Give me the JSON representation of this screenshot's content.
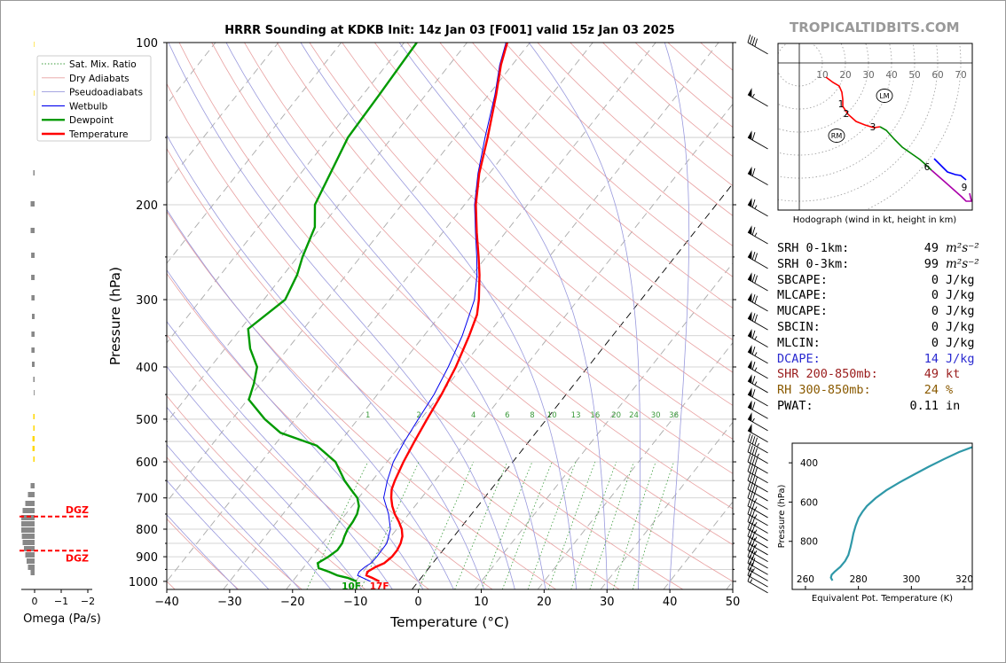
{
  "title": "HRRR Sounding at KDKB Init: 14z Jan 03 [F001] valid 15z Jan 03 2025",
  "brand": "TROPICALTIDBITS.COM",
  "chart_data": [
    {
      "type": "line",
      "name": "skew-t",
      "xlabel": "Temperature (°C)",
      "ylabel": "Pressure (hPa)",
      "xlim": [
        -40,
        50
      ],
      "ylim": [
        1035,
        100
      ],
      "x_ticks": [
        "−40",
        "−30",
        "−20",
        "−10",
        "0",
        "10",
        "20",
        "30",
        "40",
        "50"
      ],
      "y_ticks": [
        "100",
        "200",
        "300",
        "400",
        "500",
        "600",
        "700",
        "800",
        "900",
        "1000"
      ],
      "legend": [
        "Sat. Mix. Ratio",
        "Dry Adiabats",
        "Pseudoadiabats",
        "Wetbulb",
        "Dewpoint",
        "Temperature"
      ],
      "mixing_ratio_labels": [
        "1",
        "2",
        "4",
        "6",
        "8",
        "10",
        "13",
        "16",
        "20",
        "24",
        "30",
        "36"
      ],
      "surface_labels": {
        "dewpoint": "10F",
        "temperature": "17F"
      },
      "temperature": [
        [
          1000,
          -6.2
        ],
        [
          985,
          -7.8
        ],
        [
          975,
          -9.0
        ],
        [
          960,
          -9.3
        ],
        [
          940,
          -8.6
        ],
        [
          925,
          -7.7
        ],
        [
          900,
          -7.3
        ],
        [
          875,
          -7.3
        ],
        [
          850,
          -7.6
        ],
        [
          825,
          -8.2
        ],
        [
          800,
          -9.2
        ],
        [
          775,
          -10.6
        ],
        [
          750,
          -12.2
        ],
        [
          725,
          -13.6
        ],
        [
          700,
          -14.8
        ],
        [
          675,
          -15.8
        ],
        [
          650,
          -16.4
        ],
        [
          600,
          -17.4
        ],
        [
          550,
          -18.2
        ],
        [
          500,
          -19.0
        ],
        [
          450,
          -19.8
        ],
        [
          400,
          -21.0
        ],
        [
          350,
          -22.8
        ],
        [
          320,
          -24.2
        ],
        [
          300,
          -25.8
        ],
        [
          270,
          -28.8
        ],
        [
          250,
          -31.2
        ],
        [
          225,
          -34.6
        ],
        [
          200,
          -38.2
        ],
        [
          175,
          -41.6
        ],
        [
          150,
          -44.8
        ],
        [
          125,
          -48.8
        ],
        [
          110,
          -51.8
        ],
        [
          100,
          -53.6
        ]
      ],
      "dewpoint": [
        [
          1000,
          -9.8
        ],
        [
          985,
          -11.7
        ],
        [
          975,
          -13.6
        ],
        [
          960,
          -15.4
        ],
        [
          945,
          -17.5
        ],
        [
          925,
          -18.3
        ],
        [
          900,
          -17.4
        ],
        [
          875,
          -16.8
        ],
        [
          850,
          -16.9
        ],
        [
          825,
          -17.4
        ],
        [
          800,
          -17.8
        ],
        [
          775,
          -17.9
        ],
        [
          750,
          -18.2
        ],
        [
          725,
          -18.9
        ],
        [
          700,
          -20.2
        ],
        [
          675,
          -22.3
        ],
        [
          650,
          -24.4
        ],
        [
          600,
          -28.2
        ],
        [
          560,
          -33.2
        ],
        [
          530,
          -40.6
        ],
        [
          500,
          -44.8
        ],
        [
          460,
          -49.8
        ],
        [
          430,
          -51.0
        ],
        [
          400,
          -52.6
        ],
        [
          370,
          -56.0
        ],
        [
          340,
          -58.8
        ],
        [
          300,
          -56.6
        ],
        [
          270,
          -57.8
        ],
        [
          250,
          -59.2
        ],
        [
          220,
          -61.0
        ],
        [
          200,
          -63.8
        ],
        [
          150,
          -67.0
        ],
        [
          125,
          -67.4
        ],
        [
          100,
          -68.0
        ]
      ],
      "wetbulb": [
        [
          1000,
          -7.6
        ],
        [
          975,
          -10.4
        ],
        [
          960,
          -10.6
        ],
        [
          940,
          -10.3
        ],
        [
          925,
          -9.8
        ],
        [
          900,
          -9.7
        ],
        [
          850,
          -9.8
        ],
        [
          800,
          -11.0
        ],
        [
          750,
          -13.2
        ],
        [
          700,
          -16.0
        ],
        [
          650,
          -17.6
        ],
        [
          600,
          -19.0
        ],
        [
          550,
          -19.8
        ],
        [
          500,
          -20.4
        ],
        [
          450,
          -21.0
        ],
        [
          400,
          -22.2
        ],
        [
          350,
          -23.9
        ],
        [
          300,
          -26.5
        ],
        [
          270,
          -29.2
        ],
        [
          250,
          -31.5
        ],
        [
          225,
          -34.8
        ],
        [
          200,
          -38.4
        ],
        [
          175,
          -41.8
        ],
        [
          150,
          -45.2
        ],
        [
          125,
          -49.0
        ],
        [
          110,
          -52.0
        ],
        [
          100,
          -53.8
        ]
      ],
      "dgz_levels": [
        758,
        877
      ],
      "dgz_label": "DGZ",
      "omega_xlabel": "Omega (Pa/s)",
      "omega_ticks": [
        "0",
        "−1",
        "−2"
      ],
      "wind_barbs_kt": [
        [
          1000,
          15
        ],
        [
          975,
          20
        ],
        [
          950,
          25
        ],
        [
          925,
          30
        ],
        [
          900,
          30
        ],
        [
          875,
          35
        ],
        [
          850,
          35
        ],
        [
          825,
          35
        ],
        [
          800,
          35
        ],
        [
          775,
          35
        ],
        [
          750,
          35
        ],
        [
          725,
          35
        ],
        [
          700,
          35
        ],
        [
          675,
          40
        ],
        [
          650,
          40
        ],
        [
          625,
          40
        ],
        [
          600,
          40
        ],
        [
          575,
          45
        ],
        [
          550,
          45
        ],
        [
          525,
          50
        ],
        [
          500,
          55
        ],
        [
          475,
          60
        ],
        [
          450,
          60
        ],
        [
          425,
          65
        ],
        [
          400,
          65
        ],
        [
          375,
          65
        ],
        [
          350,
          65
        ],
        [
          325,
          70
        ],
        [
          300,
          70
        ],
        [
          275,
          70
        ],
        [
          250,
          70
        ],
        [
          225,
          65
        ],
        [
          200,
          65
        ],
        [
          175,
          60
        ],
        [
          150,
          60
        ],
        [
          125,
          55
        ],
        [
          100,
          40
        ]
      ]
    },
    {
      "type": "line",
      "name": "hodograph",
      "caption": "Hodograph (wind in kt, height in km)",
      "ring_labels": [
        "10",
        "20",
        "30",
        "40",
        "50",
        "60",
        "70"
      ],
      "height_labels": [
        "1",
        "2",
        "3",
        "6",
        "9"
      ],
      "markers": [
        "LM",
        "RM"
      ],
      "colors": [
        "#ff0000",
        "#008800",
        "#0000ff",
        "#aa00aa"
      ]
    },
    {
      "type": "line",
      "name": "theta-e",
      "xlabel": "Equivalent Pot. Temperature (K)",
      "ylabel": "Pressure (hPa)",
      "x_ticks": [
        "260",
        "280",
        "300",
        "320"
      ],
      "y_ticks": [
        "400",
        "600",
        "800"
      ],
      "xlim": [
        255,
        323
      ],
      "ylim": [
        1045,
        300
      ],
      "profile": [
        [
          1000,
          270.2
        ],
        [
          985,
          269.6
        ],
        [
          970,
          269.9
        ],
        [
          955,
          271.0
        ],
        [
          930,
          273.2
        ],
        [
          900,
          275.0
        ],
        [
          870,
          276.2
        ],
        [
          830,
          277.0
        ],
        [
          800,
          277.5
        ],
        [
          760,
          278.1
        ],
        [
          720,
          279.0
        ],
        [
          680,
          280.1
        ],
        [
          650,
          281.5
        ],
        [
          620,
          283.2
        ],
        [
          580,
          286.5
        ],
        [
          540,
          290.5
        ],
        [
          500,
          295.5
        ],
        [
          460,
          301.0
        ],
        [
          420,
          306.5
        ],
        [
          380,
          312.5
        ],
        [
          345,
          318.0
        ],
        [
          320,
          323.0
        ]
      ]
    }
  ],
  "indices": [
    {
      "label": "SRH 0-1km:",
      "value": "49",
      "unit": "m²s⁻²",
      "color": "#000000"
    },
    {
      "label": "SRH 0-3km:",
      "value": "99",
      "unit": "m²s⁻²",
      "color": "#000000"
    },
    {
      "label": "SBCAPE:",
      "value": "0",
      "unit": "J/kg",
      "color": "#000000"
    },
    {
      "label": "MLCAPE:",
      "value": "0",
      "unit": "J/kg",
      "color": "#000000"
    },
    {
      "label": "MUCAPE:",
      "value": "0",
      "unit": "J/kg",
      "color": "#000000"
    },
    {
      "label": "SBCIN:",
      "value": "0",
      "unit": "J/kg",
      "color": "#000000"
    },
    {
      "label": "MLCIN:",
      "value": "0",
      "unit": "J/kg",
      "color": "#000000"
    },
    {
      "label": "DCAPE:",
      "value": "14",
      "unit": "J/kg",
      "color": "#2a2ad0"
    },
    {
      "label": "SHR 200-850mb:",
      "value": "49",
      "unit": "kt",
      "color": "#9a1c1c"
    },
    {
      "label": "RH 300-850mb:",
      "value": "24",
      "unit": "%",
      "color": "#8a5a00"
    },
    {
      "label": "PWAT:",
      "value": "0.11",
      "unit": "in",
      "color": "#000000"
    }
  ]
}
